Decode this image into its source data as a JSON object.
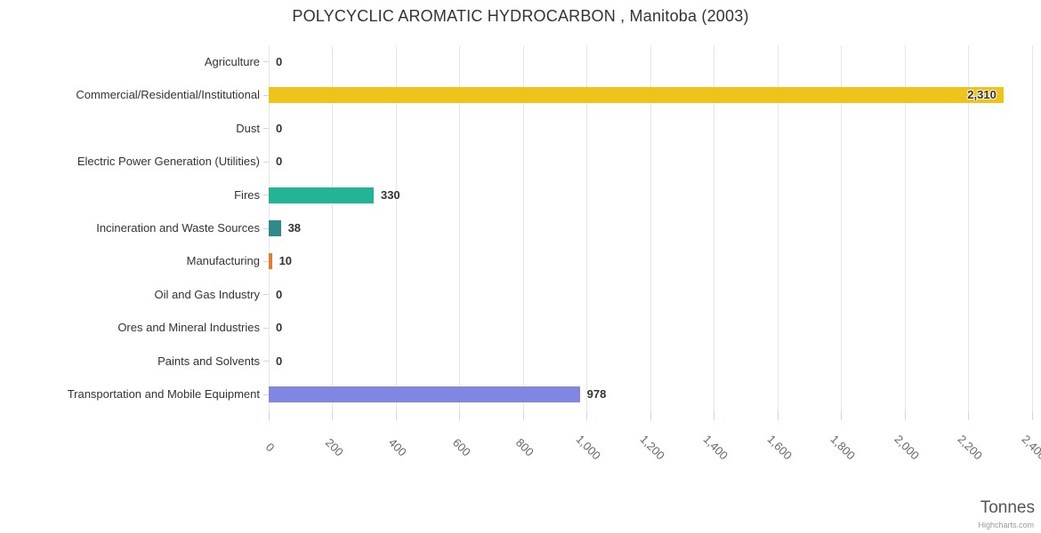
{
  "chart_data": {
    "type": "bar",
    "orientation": "horizontal",
    "title": "POLYCYCLIC AROMATIC HYDROCARBON , Manitoba (2003)",
    "categories": [
      "Agriculture",
      "Commercial/Residential/Institutional",
      "Dust",
      "Electric Power Generation (Utilities)",
      "Fires",
      "Incineration and Waste Sources",
      "Manufacturing",
      "Oil and Gas Industry",
      "Ores and Mineral Industries",
      "Paints and Solvents",
      "Transportation and Mobile Equipment"
    ],
    "values": [
      0,
      2310,
      0,
      0,
      330,
      38,
      10,
      0,
      0,
      0,
      978
    ],
    "value_labels": [
      "0",
      "2,310",
      "0",
      "0",
      "330",
      "38",
      "10",
      "0",
      "0",
      "0",
      "978"
    ],
    "bar_colors": [
      null,
      "#EDC31C",
      null,
      null,
      "#22B495",
      "#2F8A89",
      "#E07D2E",
      null,
      null,
      null,
      "#8186E3"
    ],
    "xlim": [
      0,
      2400
    ],
    "tick_interval": 200,
    "x_tick_labels": [
      "0",
      "200",
      "400",
      "600",
      "800",
      "1,000",
      "1,200",
      "1,400",
      "1,600",
      "1,800",
      "2,000",
      "2,200",
      "2,400"
    ],
    "x_axis_title": "Tonnes",
    "grid": true,
    "legend": false,
    "credits": "Highcharts.com",
    "style": {
      "grid_color": "#E6E6E6",
      "tick_color": "#CCD6EB",
      "label_color": "#333333",
      "axis_label_color": "#666666",
      "title_color": "#333333",
      "axis_title_color": "#555555",
      "credits_color": "#999999",
      "background": "#FFFFFF"
    }
  }
}
